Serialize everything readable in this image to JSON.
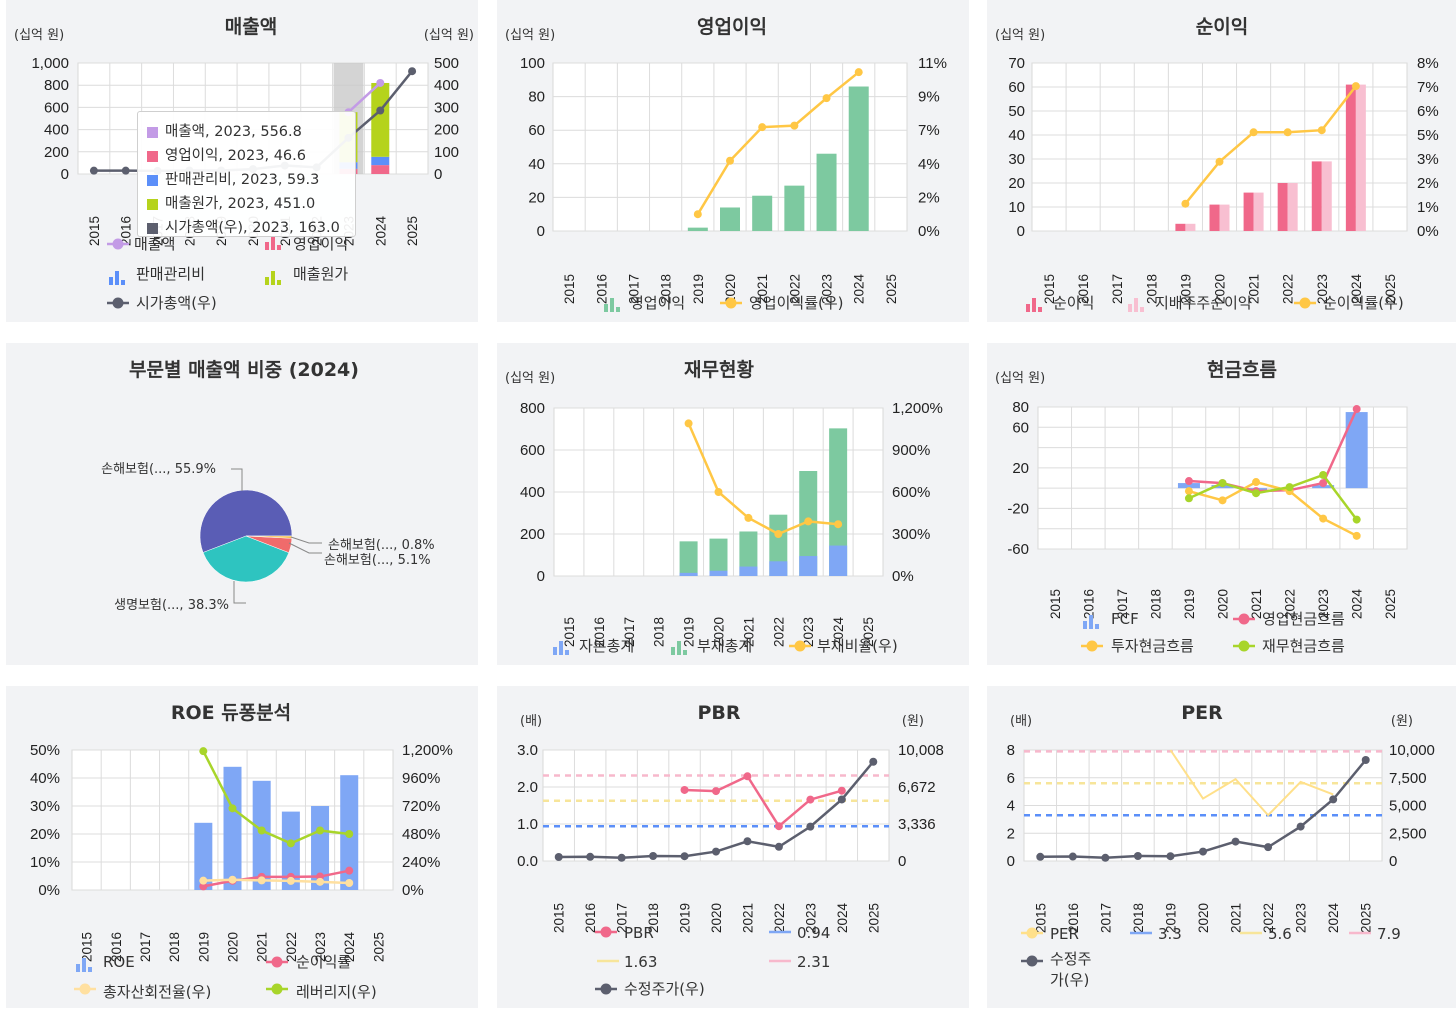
{
  "years": [
    "2015",
    "2016",
    "2017",
    "2018",
    "2019",
    "2020",
    "2021",
    "2022",
    "2023",
    "2024",
    "2025"
  ],
  "colors": {
    "sales": "#c39be6",
    "op_income": "#f0688a",
    "sga": "#5b8ff9",
    "cogs": "#b5d31c",
    "mktcap": "#5c5f6e",
    "green": "#7dc9a0",
    "yellow": "#ffc745",
    "pink": "#f0688a",
    "pinklight": "#f8bfd1",
    "blue": "#7fa7f5",
    "lime": "#a8d52a",
    "grey": "#5c5f6e",
    "pie1": "#5a5db5",
    "pie2": "#2ec4c0",
    "pie3": "#f06b6b",
    "pie4": "#f5c04a"
  },
  "panels": {
    "sales": {
      "title": "매출액",
      "unit_left": "(십억 원)",
      "unit_right": "(십억 원)",
      "yticks_left": [
        "1,000",
        "800",
        "600",
        "400",
        "200",
        "0"
      ],
      "yticks_right": [
        "500",
        "400",
        "300",
        "200",
        "100",
        "0"
      ],
      "legend": [
        "매출액",
        "영업이익",
        "판매관리비",
        "매출원가",
        "시가총액(우)"
      ],
      "tooltip": [
        {
          "label": "매출액, 2023, 556.8"
        },
        {
          "label": "영업이익, 2023, 46.6"
        },
        {
          "label": "판매관리비, 2023, 59.3"
        },
        {
          "label": "매출원가, 2023, 451.0"
        },
        {
          "label": "시가총액(우), 2023, 163.0"
        }
      ]
    },
    "op": {
      "title": "영업이익",
      "unit_left": "(십억 원)",
      "yticks_left": [
        "100",
        "80",
        "60",
        "40",
        "20",
        "0"
      ],
      "yticks_right": [
        "11%",
        "9%",
        "7%",
        "4%",
        "2%",
        "0%"
      ],
      "legend": [
        "영업이익",
        "영업이익률(우)"
      ]
    },
    "net": {
      "title": "순이익",
      "unit_left": "(십억 원)",
      "yticks_left": [
        "70",
        "60",
        "50",
        "40",
        "30",
        "20",
        "10",
        "0"
      ],
      "yticks_right": [
        "8%",
        "7%",
        "6%",
        "5%",
        "3%",
        "2%",
        "1%",
        "0%"
      ],
      "legend": [
        "순이익",
        "지배주주순이익",
        "순이익률(우)"
      ]
    },
    "pie": {
      "title": "부문별 매출액 비중 (2024)",
      "labels": [
        "손해보험(..., 55.9%",
        "생명보험(..., 38.3%",
        "손해보험(..., 5.1%",
        "손해보험(..., 0.8%"
      ]
    },
    "fin": {
      "title": "재무현황",
      "unit_left": "(십억 원)",
      "yticks_left": [
        "800",
        "600",
        "400",
        "200",
        "0"
      ],
      "yticks_right": [
        "1,200%",
        "900%",
        "600%",
        "300%",
        "0%"
      ],
      "legend": [
        "자본총계",
        "부채총계",
        "부채비율(우)"
      ]
    },
    "cf": {
      "title": "현금흐름",
      "unit_left": "(십억 원)",
      "yticks_left": [
        "80",
        "60",
        "20",
        "-20",
        "-60"
      ],
      "legend": [
        "FCF",
        "영업현금흐름",
        "투자현금흐름",
        "재무현금흐름"
      ]
    },
    "roe": {
      "title": "ROE 듀퐁분석",
      "yticks_left": [
        "50%",
        "40%",
        "30%",
        "20%",
        "10%",
        "0%"
      ],
      "yticks_right": [
        "1,200%",
        "960%",
        "720%",
        "480%",
        "240%",
        "0%"
      ],
      "legend": [
        "ROE",
        "순이익률",
        "총자산회전율(우)",
        "레버리지(우)"
      ]
    },
    "pbr": {
      "title": "PBR",
      "unit_left": "(배)",
      "unit_right": "(원)",
      "yticks_left": [
        "3.0",
        "2.0",
        "1.0",
        "0.0"
      ],
      "yticks_right": [
        "10,008",
        "6,672",
        "3,336",
        "0"
      ],
      "legend": [
        "PBR",
        "0.94",
        "1.63",
        "2.31",
        "수정주가(우)"
      ]
    },
    "per": {
      "title": "PER",
      "unit_left": "(배)",
      "unit_right": "(원)",
      "yticks_left": [
        "8",
        "6",
        "4",
        "2",
        "0"
      ],
      "yticks_right": [
        "10,000",
        "7,500",
        "5,000",
        "2,500",
        "0"
      ],
      "legend": [
        "PER",
        "3.3",
        "5.6",
        "7.9",
        "수정주",
        "가(우)"
      ]
    }
  },
  "chart_data": [
    {
      "type": "bar",
      "title": "매출액",
      "categories": [
        "2015",
        "2016",
        "2017",
        "2018",
        "2019",
        "2020",
        "2021",
        "2022",
        "2023",
        "2024",
        "2025"
      ],
      "ylim": [
        0,
        1000
      ],
      "y2lim": [
        0,
        500
      ],
      "series": [
        {
          "name": "매출액",
          "values": [
            null,
            null,
            null,
            null,
            null,
            null,
            null,
            null,
            556.8,
            820,
            null
          ]
        },
        {
          "name": "영업이익",
          "values": [
            null,
            null,
            null,
            null,
            null,
            null,
            null,
            null,
            46.6,
            80,
            null
          ]
        },
        {
          "name": "판매관리비",
          "values": [
            null,
            null,
            null,
            null,
            null,
            null,
            null,
            null,
            59.3,
            75,
            null
          ]
        },
        {
          "name": "매출원가",
          "values": [
            null,
            null,
            null,
            null,
            null,
            null,
            null,
            null,
            451.0,
            665,
            null
          ]
        },
        {
          "name": "시가총액(우)",
          "values": [
            15,
            15,
            14,
            16,
            16,
            22,
            38,
            30,
            163.0,
            286,
            463
          ]
        }
      ]
    },
    {
      "type": "bar",
      "title": "영업이익",
      "categories": [
        "2015",
        "2016",
        "2017",
        "2018",
        "2019",
        "2020",
        "2021",
        "2022",
        "2023",
        "2024",
        "2025"
      ],
      "ylim": [
        0,
        100
      ],
      "y2lim": [
        0,
        11
      ],
      "series": [
        {
          "name": "영업이익",
          "values": [
            null,
            null,
            null,
            null,
            2,
            14,
            21,
            27,
            46,
            86,
            null
          ]
        },
        {
          "name": "영업이익률(우)",
          "values": [
            null,
            null,
            null,
            null,
            1.1,
            4.6,
            6.8,
            6.9,
            8.7,
            10.4,
            null
          ]
        }
      ]
    },
    {
      "type": "bar",
      "title": "순이익",
      "categories": [
        "2015",
        "2016",
        "2017",
        "2018",
        "2019",
        "2020",
        "2021",
        "2022",
        "2023",
        "2024",
        "2025"
      ],
      "ylim": [
        0,
        70
      ],
      "y2lim": [
        0,
        8
      ],
      "series": [
        {
          "name": "순이익",
          "values": [
            null,
            null,
            null,
            null,
            3,
            11,
            16,
            20,
            29,
            61,
            null
          ]
        },
        {
          "name": "지배주주순이익",
          "values": [
            null,
            null,
            null,
            null,
            3,
            11,
            16,
            20,
            29,
            61,
            null
          ]
        },
        {
          "name": "순이익률(우)",
          "values": [
            null,
            null,
            null,
            null,
            1.3,
            3.3,
            4.7,
            4.7,
            4.8,
            6.9,
            null
          ]
        }
      ]
    },
    {
      "type": "pie",
      "title": "부문별 매출액 비중 (2024)",
      "labels": [
        "손해보험(...",
        "생명보험(...",
        "손해보험(...",
        "손해보험(..."
      ],
      "values": [
        55.9,
        38.3,
        5.1,
        0.8
      ]
    },
    {
      "type": "bar",
      "title": "재무현황",
      "categories": [
        "2015",
        "2016",
        "2017",
        "2018",
        "2019",
        "2020",
        "2021",
        "2022",
        "2023",
        "2024",
        "2025"
      ],
      "ylim": [
        0,
        800
      ],
      "y2lim": [
        0,
        1200
      ],
      "series": [
        {
          "name": "자본총계",
          "values": [
            null,
            null,
            null,
            null,
            15,
            25,
            45,
            70,
            95,
            145,
            null
          ]
        },
        {
          "name": "부채총계",
          "values": [
            null,
            null,
            null,
            null,
            165,
            178,
            212,
            292,
            500,
            703,
            null
          ]
        },
        {
          "name": "부채비율(우)",
          "values": [
            null,
            null,
            null,
            null,
            1090,
            600,
            415,
            300,
            390,
            370,
            null
          ]
        }
      ]
    },
    {
      "type": "bar",
      "title": "현금흐름",
      "categories": [
        "2015",
        "2016",
        "2017",
        "2018",
        "2019",
        "2020",
        "2021",
        "2022",
        "2023",
        "2024",
        "2025"
      ],
      "ylim": [
        -60,
        80
      ],
      "series": [
        {
          "name": "FCF",
          "values": [
            null,
            null,
            null,
            null,
            5,
            3,
            -2,
            -1,
            3,
            75,
            null
          ]
        },
        {
          "name": "영업현금흐름",
          "values": [
            null,
            null,
            null,
            null,
            7,
            5,
            -3,
            -2,
            5,
            78,
            null
          ]
        },
        {
          "name": "투자현금흐름",
          "values": [
            null,
            null,
            null,
            null,
            -3,
            -12,
            6,
            -3,
            -30,
            -47,
            null
          ]
        },
        {
          "name": "재무현금흐름",
          "values": [
            null,
            null,
            null,
            null,
            -10,
            5,
            -5,
            1,
            13,
            -31,
            null
          ]
        }
      ]
    },
    {
      "type": "bar",
      "title": "ROE 듀퐁분석",
      "categories": [
        "2015",
        "2016",
        "2017",
        "2018",
        "2019",
        "2020",
        "2021",
        "2022",
        "2023",
        "2024",
        "2025"
      ],
      "ylim": [
        0,
        50
      ],
      "y2lim": [
        0,
        1200
      ],
      "series": [
        {
          "name": "ROE",
          "values": [
            null,
            null,
            null,
            null,
            24,
            44,
            39,
            28,
            30,
            41,
            null
          ]
        },
        {
          "name": "순이익률",
          "values": [
            null,
            null,
            null,
            null,
            1.3,
            3.3,
            4.7,
            4.7,
            4.8,
            6.9,
            null
          ]
        },
        {
          "name": "총자산회전율(우)",
          "values": [
            null,
            null,
            null,
            null,
            80,
            88,
            82,
            78,
            70,
            60,
            null
          ]
        },
        {
          "name": "레버리지(우)",
          "values": [
            null,
            null,
            null,
            null,
            1190,
            700,
            510,
            400,
            510,
            480,
            null
          ]
        }
      ]
    },
    {
      "type": "line",
      "title": "PBR",
      "categories": [
        "2015",
        "2016",
        "2017",
        "2018",
        "2019",
        "2020",
        "2021",
        "2022",
        "2023",
        "2024",
        "2025"
      ],
      "ylim": [
        0,
        3.0
      ],
      "y2lim": [
        0,
        10008
      ],
      "series": [
        {
          "name": "PBR",
          "values": [
            null,
            null,
            null,
            null,
            1.92,
            1.89,
            2.29,
            0.94,
            1.66,
            1.9,
            null
          ]
        },
        {
          "name": "0.94",
          "values": [
            0.94,
            0.94,
            0.94,
            0.94,
            0.94,
            0.94,
            0.94,
            0.94,
            0.94,
            0.94,
            0.94
          ]
        },
        {
          "name": "1.63",
          "values": [
            1.63,
            1.63,
            1.63,
            1.63,
            1.63,
            1.63,
            1.63,
            1.63,
            1.63,
            1.63,
            1.63
          ]
        },
        {
          "name": "2.31",
          "values": [
            2.31,
            2.31,
            2.31,
            2.31,
            2.31,
            2.31,
            2.31,
            2.31,
            2.31,
            2.31,
            2.31
          ]
        },
        {
          "name": "수정주가(우)",
          "values": [
            360,
            380,
            290,
            450,
            430,
            850,
            1780,
            1280,
            3100,
            5550,
            8950
          ]
        }
      ]
    },
    {
      "type": "line",
      "title": "PER",
      "categories": [
        "2015",
        "2016",
        "2017",
        "2018",
        "2019",
        "2020",
        "2021",
        "2022",
        "2023",
        "2024",
        "2025"
      ],
      "ylim": [
        0,
        8
      ],
      "y2lim": [
        0,
        10000
      ],
      "series": [
        {
          "name": "PER",
          "values": [
            null,
            null,
            null,
            null,
            8.0,
            4.5,
            5.9,
            3.3,
            5.7,
            4.8,
            null
          ]
        },
        {
          "name": "3.3",
          "values": [
            3.3,
            3.3,
            3.3,
            3.3,
            3.3,
            3.3,
            3.3,
            3.3,
            3.3,
            3.3,
            3.3
          ]
        },
        {
          "name": "5.6",
          "values": [
            5.6,
            5.6,
            5.6,
            5.6,
            5.6,
            5.6,
            5.6,
            5.6,
            5.6,
            5.6,
            5.6
          ]
        },
        {
          "name": "7.9",
          "values": [
            7.9,
            7.9,
            7.9,
            7.9,
            7.9,
            7.9,
            7.9,
            7.9,
            7.9,
            7.9,
            7.9
          ]
        },
        {
          "name": "수정주가(우)",
          "values": [
            380,
            400,
            290,
            450,
            430,
            850,
            1750,
            1250,
            3100,
            5550,
            9100
          ]
        }
      ]
    }
  ]
}
